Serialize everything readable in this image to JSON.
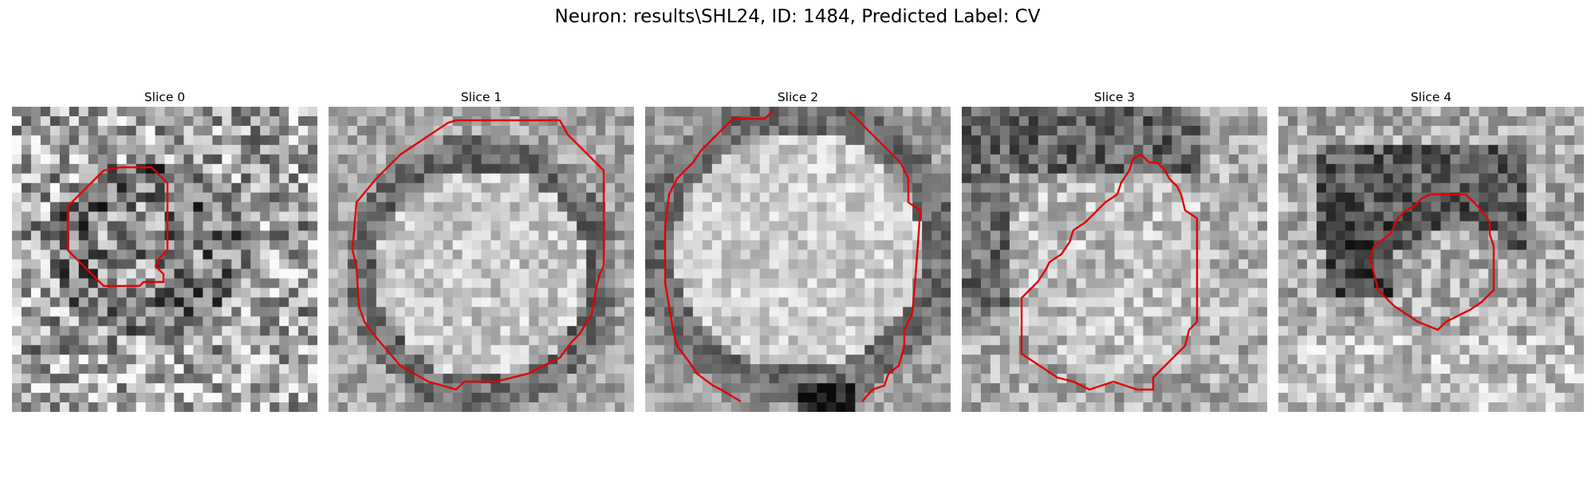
{
  "figure": {
    "title": "Neuron: results\\SHL24, ID: 1484, Predicted Label: CV"
  },
  "colors": {
    "contour": "#e00000",
    "background": "#ffffff"
  },
  "slices": [
    {
      "title": "Slice 0",
      "image": "noisy-grayscale-em-patch",
      "contour": "red-outline"
    },
    {
      "title": "Slice 1",
      "image": "grayscale-circular-vesicle",
      "contour": "red-outline"
    },
    {
      "title": "Slice 2",
      "image": "grayscale-circular-vesicle",
      "contour": "red-outline"
    },
    {
      "title": "Slice 3",
      "image": "grayscale-em-patch",
      "contour": "red-outline"
    },
    {
      "title": "Slice 4",
      "image": "grayscale-em-patch",
      "contour": "red-outline"
    }
  ]
}
